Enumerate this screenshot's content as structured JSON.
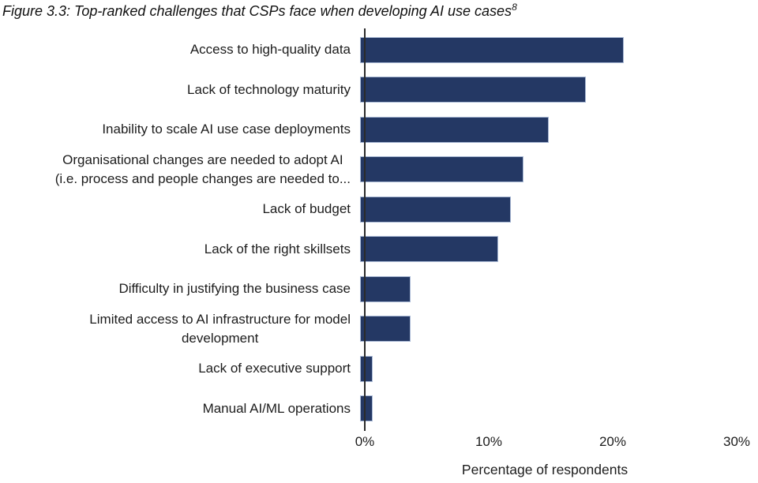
{
  "title": {
    "text": "Figure 3.3: Top-ranked challenges that CSPs face when developing AI use cases",
    "superscript": "8"
  },
  "chart_data": {
    "type": "bar",
    "orientation": "horizontal",
    "title": "Figure 3.3: Top-ranked challenges that CSPs face when developing AI use cases",
    "title_superscript": "8",
    "categories": [
      "Access to high-quality data",
      "Lack of technology maturity",
      "Inability to scale AI use case deployments",
      "Organisational changes are needed to adopt AI (i.e. process and people changes are needed to...",
      "Lack of budget",
      "Lack of the right skillsets",
      "Difficulty in justifying the business case",
      "Limited access to AI infrastructure for model development",
      "Lack of executive support",
      "Manual AI/ML operations"
    ],
    "category_label_lines": [
      [
        "Access to high-quality data"
      ],
      [
        "Lack of technology maturity"
      ],
      [
        "Inability to scale AI use case deployments"
      ],
      [
        "Organisational changes are needed to adopt AI",
        "(i.e. process and people changes are needed to..."
      ],
      [
        "Lack of budget"
      ],
      [
        "Lack of the right skillsets"
      ],
      [
        "Difficulty in justifying the business case"
      ],
      [
        "Limited access to AI infrastructure for model",
        "development"
      ],
      [
        "Lack of executive support"
      ],
      [
        "Manual AI/ML operations"
      ]
    ],
    "values": [
      21,
      18,
      15,
      13,
      12,
      11,
      4,
      4,
      1,
      1
    ],
    "unit": "%",
    "xlabel": "Percentage of respondents",
    "ylabel": "",
    "x_ticks": [
      "0%",
      "10%",
      "20%",
      "30%"
    ],
    "xlim": [
      0,
      30
    ],
    "grid": false,
    "legend": false,
    "bar_color": "#243864",
    "bar_border_color": "#a8b8d4",
    "axis_line_color": "#2b2b2b"
  }
}
